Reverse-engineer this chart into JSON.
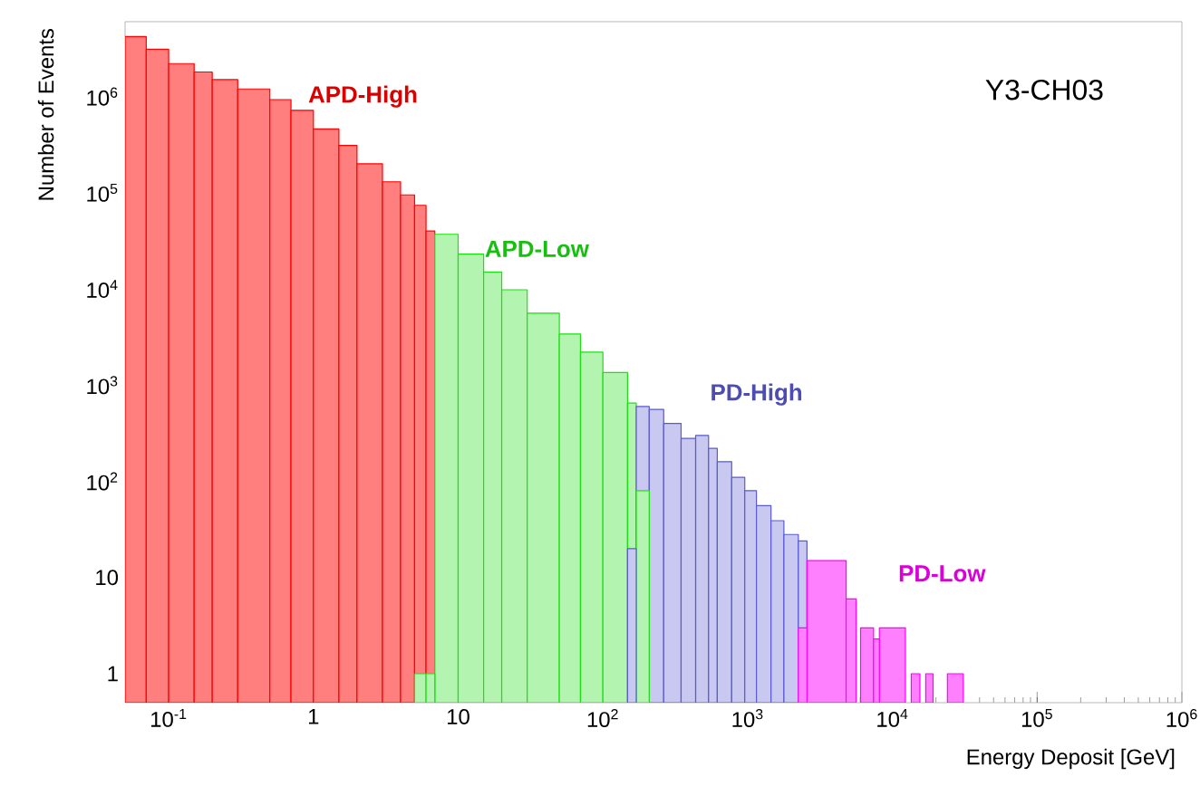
{
  "chart_data": {
    "type": "histogram",
    "title": "Y3-CH03",
    "xlabel": "Energy Deposit [GeV]",
    "ylabel": "Number of Events",
    "log": "xy",
    "grid": false,
    "xlim": [
      0.05,
      1000000
    ],
    "ylim": [
      0.5,
      6000000
    ],
    "xticks": [
      {
        "value": 0.1,
        "label": "10$^{-1}$"
      },
      {
        "value": 1,
        "label": "1"
      },
      {
        "value": 10,
        "label": "10"
      },
      {
        "value": 100,
        "label": "10$^{2}$"
      },
      {
        "value": 1000,
        "label": "10$^{3}$"
      },
      {
        "value": 10000,
        "label": "10$^{4}$"
      },
      {
        "value": 100000,
        "label": "10$^{5}$"
      },
      {
        "value": 1000000,
        "label": "10$^{6}$"
      }
    ],
    "yticks": [
      {
        "value": 1,
        "label": "1"
      },
      {
        "value": 10,
        "label": "10"
      },
      {
        "value": 100,
        "label": "10$^{2}$"
      },
      {
        "value": 1000,
        "label": "10$^{3}$"
      },
      {
        "value": 10000,
        "label": "10$^{4}$"
      },
      {
        "value": 100000,
        "label": "10$^{5}$"
      },
      {
        "value": 1000000,
        "label": "10$^{6}$"
      }
    ],
    "bins": [
      0.05,
      0.07,
      0.1,
      0.15,
      0.2,
      0.3,
      0.5,
      0.7,
      1,
      1.5,
      2,
      3,
      4,
      5,
      6,
      6.9,
      10,
      15,
      20,
      30,
      50,
      70,
      100,
      148,
      170,
      209,
      263,
      347,
      437,
      537,
      617,
      776,
      955,
      1150,
      1450,
      1780,
      2240,
      2570,
      4790,
      5620,
      6030,
      7410,
      8130,
      12300,
      13500,
      15500,
      17000,
      19100,
      24000,
      30900
    ],
    "series": [
      {
        "name": "APD-High",
        "color": "#ff7f7f",
        "values": [
          4200000,
          3100000,
          2200000,
          1800000,
          1500000,
          1200000,
          930000,
          720000,
          460000,
          310000,
          200000,
          130000,
          95000,
          74000,
          40000,
          null,
          null,
          null,
          null,
          null,
          null,
          null,
          null,
          null,
          null,
          null,
          null,
          null,
          null,
          null,
          null,
          null,
          null,
          null,
          null,
          null,
          null,
          null,
          null,
          null,
          null,
          null,
          null,
          null,
          null,
          null,
          null,
          null,
          null
        ]
      },
      {
        "name": "APD-Low",
        "color": "#b3f5b0",
        "values": [
          null,
          null,
          null,
          null,
          null,
          null,
          null,
          null,
          null,
          null,
          null,
          null,
          null,
          1,
          1,
          37000,
          23000,
          15000,
          9800,
          5600,
          3400,
          2200,
          1350,
          650,
          80,
          null,
          null,
          null,
          null,
          null,
          null,
          null,
          null,
          null,
          null,
          null,
          null,
          null,
          null,
          null,
          null,
          null,
          null,
          null,
          null,
          null,
          null,
          null,
          null
        ]
      },
      {
        "name": "PD-High",
        "color": "#c8c8f0",
        "values": [
          null,
          null,
          null,
          null,
          null,
          null,
          null,
          null,
          null,
          null,
          null,
          null,
          null,
          null,
          null,
          null,
          null,
          null,
          null,
          null,
          null,
          null,
          null,
          20,
          600,
          560,
          400,
          280,
          300,
          220,
          160,
          110,
          80,
          56,
          39,
          28,
          24,
          null,
          null,
          null,
          null,
          null,
          null,
          null,
          null,
          null,
          null,
          null,
          null
        ]
      },
      {
        "name": "PD-Low",
        "color": "#ff80ff",
        "values": [
          null,
          null,
          null,
          null,
          null,
          null,
          null,
          null,
          null,
          null,
          null,
          null,
          null,
          null,
          null,
          null,
          null,
          null,
          null,
          null,
          null,
          null,
          null,
          null,
          null,
          null,
          null,
          null,
          null,
          null,
          null,
          null,
          null,
          null,
          null,
          null,
          3,
          15,
          6,
          null,
          3,
          2.3,
          3,
          null,
          1,
          null,
          1,
          null,
          1
        ]
      }
    ]
  }
}
